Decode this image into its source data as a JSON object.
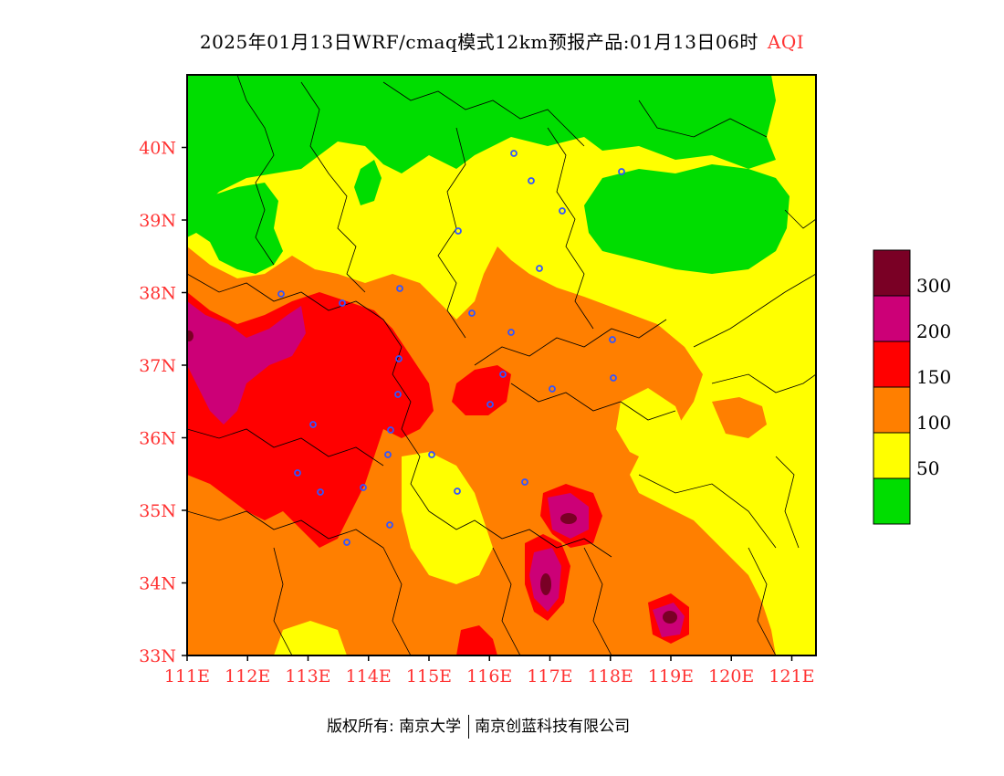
{
  "title": {
    "main": "2025年01月13日WRF/cmaq模式12km预报产品:01月13日06时",
    "variable": "AQI"
  },
  "axes": {
    "lat_labels": [
      "40N",
      "39N",
      "38N",
      "37N",
      "36N",
      "35N",
      "34N",
      "33N"
    ],
    "lat_values": [
      40,
      39,
      38,
      37,
      36,
      35,
      34,
      33
    ],
    "lon_labels": [
      "111E",
      "112E",
      "113E",
      "114E",
      "115E",
      "116E",
      "117E",
      "118E",
      "119E",
      "120E",
      "121E"
    ],
    "lon_values": [
      111,
      112,
      113,
      114,
      115,
      116,
      117,
      118,
      119,
      120,
      121
    ],
    "lat_range": [
      33,
      41
    ],
    "lon_range": [
      111,
      121.4
    ]
  },
  "legend": {
    "bins": [
      {
        "label": "",
        "color": "#00dd00"
      },
      {
        "label": "50",
        "color": "#ffff00"
      },
      {
        "label": "100",
        "color": "#ff7f00"
      },
      {
        "label": "150",
        "color": "#ff0000"
      },
      {
        "label": "200",
        "color": "#cc0077"
      },
      {
        "label": "300",
        "color": "#7a0025"
      }
    ]
  },
  "colors": {
    "good": "#00dd00",
    "moderate": "#ffff00",
    "unhealthy_sensitive": "#ff7f00",
    "unhealthy": "#ff0000",
    "very_unhealthy": "#cc0077",
    "hazardous": "#7a0025",
    "axis_label": "#ff3333"
  },
  "footer": {
    "copyright": "版权所有: 南京大学",
    "company": "南京创蓝科技有限公司"
  }
}
